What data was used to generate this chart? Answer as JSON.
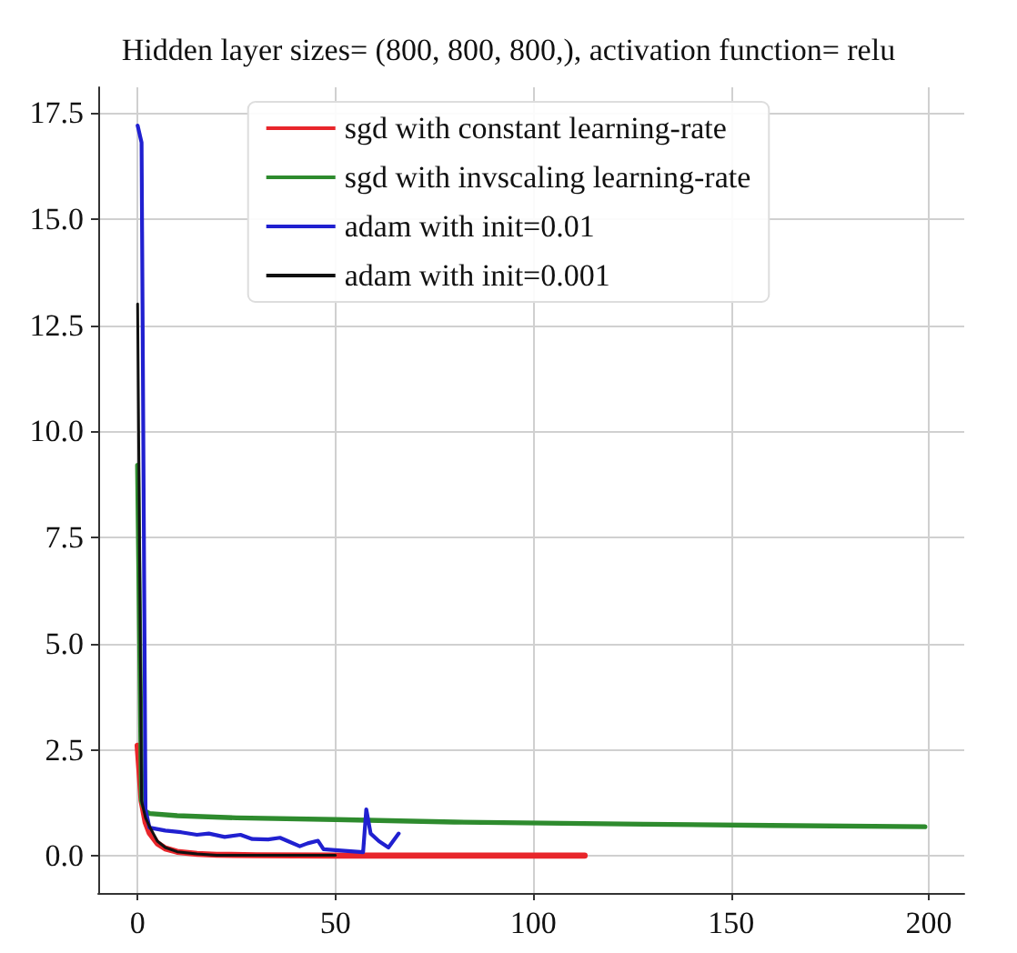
{
  "chart_data": {
    "type": "line",
    "title": "Hidden layer sizes= (800, 800, 800,), activation function= relu",
    "xlim": [
      -9.95,
      208.95
    ],
    "xticks": [
      0,
      50,
      100,
      150,
      200
    ],
    "ylim": [
      -0.87,
      18.1
    ],
    "yticks": [
      {
        "value": 0,
        "label": "0.0"
      },
      {
        "value": 2.5,
        "label": "2.5"
      },
      {
        "value": 5,
        "label": "5.0"
      },
      {
        "value": 7.5,
        "label": "7.5"
      },
      {
        "value": 10,
        "label": "10.0"
      },
      {
        "value": 12.5,
        "label": "12.5"
      },
      {
        "value": 15,
        "label": "15.0"
      },
      {
        "value": 17.5,
        "label": "17.5"
      }
    ],
    "grid": true,
    "legend": "top",
    "line_style": "solid",
    "marker": "none",
    "series": [
      {
        "name": "sgd with constant learning-rate",
        "color": "#e8262b",
        "x": [
          0,
          1,
          2,
          3,
          5,
          7,
          10,
          15,
          20,
          30,
          50,
          80,
          113
        ],
        "values": [
          2.6,
          1.3,
          0.8,
          0.55,
          0.3,
          0.18,
          0.1,
          0.05,
          0.03,
          0.02,
          0.01,
          0.01,
          0.01
        ]
      },
      {
        "name": "sgd with invscaling learning-rate",
        "color": "#2e8b2e",
        "x": [
          0,
          1,
          2,
          3,
          10,
          25,
          50,
          80,
          128,
          160,
          199
        ],
        "values": [
          9.2,
          1.3,
          1.05,
          1.0,
          0.95,
          0.9,
          0.86,
          0.8,
          0.75,
          0.72,
          0.69
        ]
      },
      {
        "name": "adam with init=0.01",
        "color": "#2020d0",
        "x": [
          0,
          1,
          2,
          3,
          7,
          11,
          15,
          18,
          22,
          26,
          29,
          33,
          36,
          38,
          41,
          43,
          45.6,
          47,
          50,
          57,
          57.8,
          58.9,
          61,
          63.4,
          66
        ],
        "values": [
          17.2,
          16.8,
          1.1,
          0.67,
          0.6,
          0.56,
          0.5,
          0.53,
          0.45,
          0.5,
          0.4,
          0.39,
          0.43,
          0.35,
          0.23,
          0.3,
          0.36,
          0.16,
          0.14,
          0.09,
          1.1,
          0.53,
          0.35,
          0.2,
          0.53
        ]
      },
      {
        "name": "adam with init=0.001",
        "color": "#111111",
        "x": [
          0,
          1,
          2,
          3,
          5,
          7,
          10,
          15,
          20,
          30,
          40,
          50
        ],
        "values": [
          13.0,
          1.3,
          0.9,
          0.7,
          0.35,
          0.2,
          0.1,
          0.05,
          0.02,
          0.02,
          0.02,
          0.02
        ]
      }
    ]
  }
}
